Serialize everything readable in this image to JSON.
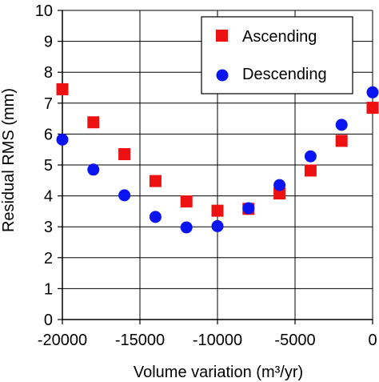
{
  "chart_data": {
    "type": "scatter",
    "title": "",
    "xlabel": "Volume variation (m³/yr)",
    "ylabel": "Residual RMS (mm)",
    "xlim": [
      -20000,
      0
    ],
    "ylim": [
      0,
      10
    ],
    "x_ticks": [
      -20000,
      -15000,
      -10000,
      -5000,
      0
    ],
    "y_ticks": [
      0,
      1,
      2,
      3,
      4,
      5,
      6,
      7,
      8,
      9,
      10
    ],
    "x_tick_labels": [
      "-20000",
      "-15000",
      "-10000",
      "-5000",
      "0"
    ],
    "y_tick_labels": [
      "0",
      "1",
      "2",
      "3",
      "4",
      "5",
      "6",
      "7",
      "8",
      "9",
      "10"
    ],
    "x_gridlines": [
      -20000,
      -15000,
      -10000,
      -5000,
      0
    ],
    "y_gridlines": [
      1,
      2,
      3,
      4,
      5,
      6,
      7,
      8,
      9,
      10
    ],
    "grid": true,
    "legend_position": "top-right",
    "x": [
      -20000,
      -18000,
      -16000,
      -14000,
      -12000,
      -10000,
      -8000,
      -6000,
      -4000,
      -2000,
      0
    ],
    "series": [
      {
        "name": "Ascending",
        "marker": "square",
        "color": "#ee1111",
        "values": [
          7.45,
          6.38,
          5.35,
          4.48,
          3.82,
          3.52,
          3.58,
          4.08,
          4.82,
          5.78,
          6.85
        ]
      },
      {
        "name": "Descending",
        "marker": "circle",
        "color": "#0a14f0",
        "values": [
          5.82,
          4.85,
          4.02,
          3.32,
          2.98,
          3.02,
          3.6,
          4.35,
          5.28,
          6.3,
          7.35
        ]
      }
    ]
  }
}
